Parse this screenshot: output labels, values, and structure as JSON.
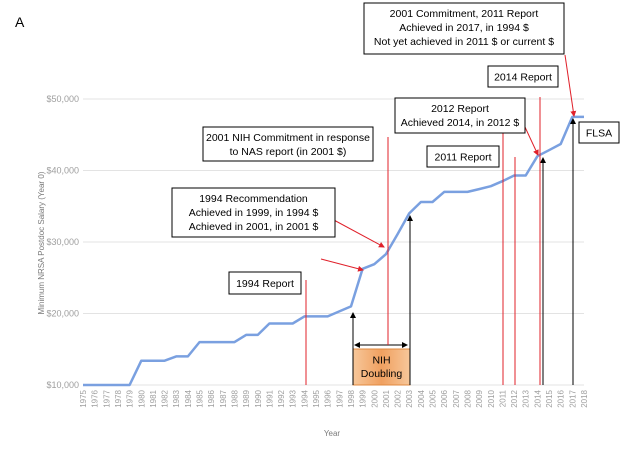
{
  "panel_label": "A",
  "chart_data": {
    "type": "line",
    "title": "",
    "xlabel": "Year",
    "ylabel": "Minimum NRSA Postdoc Salary (Year 0)",
    "ylim": [
      10000,
      50000
    ],
    "xlim": [
      1975,
      2018
    ],
    "y_ticks": [
      "$10,000",
      "$20,000",
      "$30,000",
      "$40,000",
      "$50,000"
    ],
    "x_ticks": [
      "1975",
      "1976",
      "1977",
      "1978",
      "1979",
      "1980",
      "1981",
      "1982",
      "1983",
      "1984",
      "1985",
      "1986",
      "1987",
      "1988",
      "1989",
      "1990",
      "1991",
      "1992",
      "1993",
      "1994",
      "1995",
      "1996",
      "1997",
      "1998",
      "1999",
      "2000",
      "2001",
      "2002",
      "2003",
      "2004",
      "2005",
      "2006",
      "2007",
      "2008",
      "2009",
      "2010",
      "2011",
      "2012",
      "2013",
      "2014",
      "2015",
      "2016",
      "2017",
      "2018"
    ],
    "grid": true,
    "series": [
      {
        "name": "",
        "color": "#7aa0e0",
        "x": [
          1975,
          1976,
          1977,
          1978,
          1979,
          1980,
          1981,
          1982,
          1983,
          1984,
          1985,
          1986,
          1987,
          1988,
          1989,
          1990,
          1991,
          1992,
          1993,
          1994,
          1995,
          1996,
          1997,
          1998,
          1999,
          2000,
          2001,
          2002,
          2003,
          2004,
          2005,
          2006,
          2007,
          2008,
          2009,
          2010,
          2011,
          2012,
          2013,
          2014,
          2015,
          2016,
          2017,
          2018
        ],
        "y": [
          10000,
          10000,
          10000,
          10000,
          10000,
          13400,
          13400,
          13400,
          14000,
          14000,
          16000,
          16000,
          16000,
          16000,
          17000,
          17000,
          18600,
          18600,
          18600,
          19600,
          19600,
          19600,
          20300,
          21000,
          26250,
          26900,
          28300,
          31100,
          34000,
          35600,
          35600,
          37000,
          37000,
          37000,
          37400,
          37800,
          38500,
          39300,
          39300,
          42000,
          42840,
          43700,
          47500,
          47500
        ]
      }
    ],
    "annotations": [
      {
        "lines": [
          "2001 Commitment, 2011 Report",
          "Achieved in 2017, in 1994 $",
          "Not yet achieved in 2011 $ or current $"
        ]
      },
      {
        "lines": [
          "2014 Report"
        ]
      },
      {
        "lines": [
          "2012 Report",
          "Achieved 2014, in 2012 $"
        ]
      },
      {
        "lines": [
          "2001 NIH Commitment in response",
          "to NAS report (in 2001 $)"
        ]
      },
      {
        "lines": [
          "2011 Report"
        ]
      },
      {
        "lines": [
          "FLSA"
        ]
      },
      {
        "lines": [
          "1994 Recommendation",
          "Achieved in 1999, in 1994 $",
          "Achieved in 2001, in 2001 $"
        ]
      },
      {
        "lines": [
          "1994 Report"
        ]
      },
      {
        "lines": [
          "NIH",
          "Doubling"
        ]
      }
    ]
  }
}
